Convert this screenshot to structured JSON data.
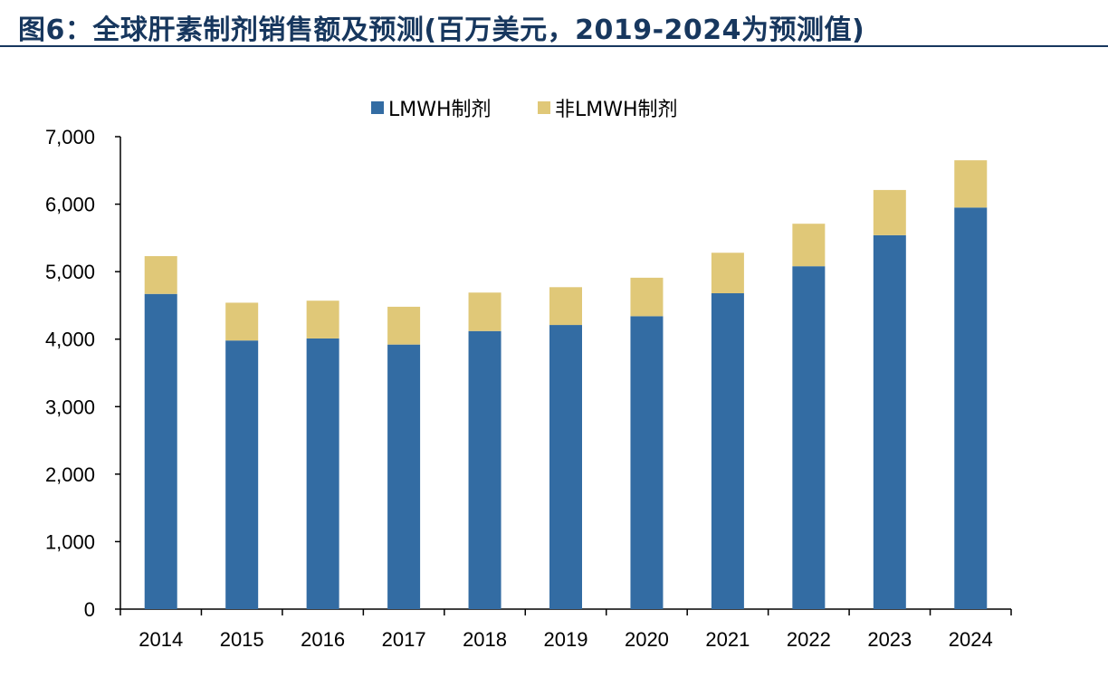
{
  "title": "图6：全球肝素制剂销售额及预测(百万美元，2019-2024为预测值)",
  "chart_data": {
    "type": "bar",
    "stacked": true,
    "title": "图6：全球肝素制剂销售额及预测(百万美元，2019-2024为预测值)",
    "xlabel": "",
    "ylabel": "",
    "categories": [
      "2014",
      "2015",
      "2016",
      "2017",
      "2018",
      "2019",
      "2020",
      "2021",
      "2022",
      "2023",
      "2024"
    ],
    "series": [
      {
        "name": "LMWH制剂",
        "color": "#336ca3",
        "values": [
          4670,
          3980,
          4010,
          3920,
          4120,
          4210,
          4340,
          4680,
          5080,
          5540,
          5950
        ]
      },
      {
        "name": "非LMWH制剂",
        "color": "#e0c878",
        "values": [
          560,
          560,
          560,
          560,
          570,
          560,
          570,
          600,
          630,
          670,
          700
        ]
      }
    ],
    "ylim": [
      0,
      7000
    ],
    "yticks": [
      "0",
      "1,000",
      "2,000",
      "3,000",
      "4,000",
      "5,000",
      "6,000",
      "7,000"
    ],
    "grid": false,
    "legend": "top-center"
  }
}
